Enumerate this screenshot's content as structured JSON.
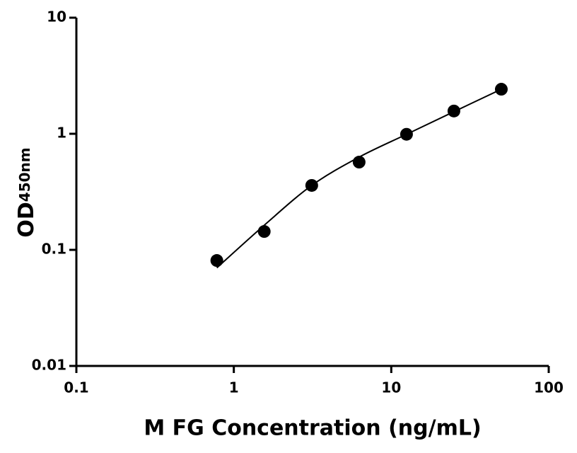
{
  "chart_data": {
    "type": "scatter",
    "xlabel": "M FG Concentration (ng/mL)",
    "ylabel": "OD",
    "ylabel_subscript": "450nm",
    "x": [
      0.78,
      1.56,
      3.125,
      6.25,
      12.5,
      25,
      50
    ],
    "series": [
      {
        "values": [
          0.081,
          0.144,
          0.359,
          0.57,
          0.99,
          1.57,
          2.42
        ],
        "color": "#000000",
        "style": "marker"
      },
      {
        "values": [
          0.07,
          0.163,
          0.359,
          0.63,
          0.99,
          1.55,
          2.42
        ],
        "color": "#000000",
        "style": "line"
      }
    ],
    "xscale": "log",
    "yscale": "log",
    "xlim": [
      0.1,
      100
    ],
    "ylim": [
      0.01,
      10
    ],
    "xticks": [
      0.1,
      1,
      10,
      100
    ],
    "yticks": [
      0.01,
      0.1,
      1,
      10
    ],
    "grid": false
  }
}
